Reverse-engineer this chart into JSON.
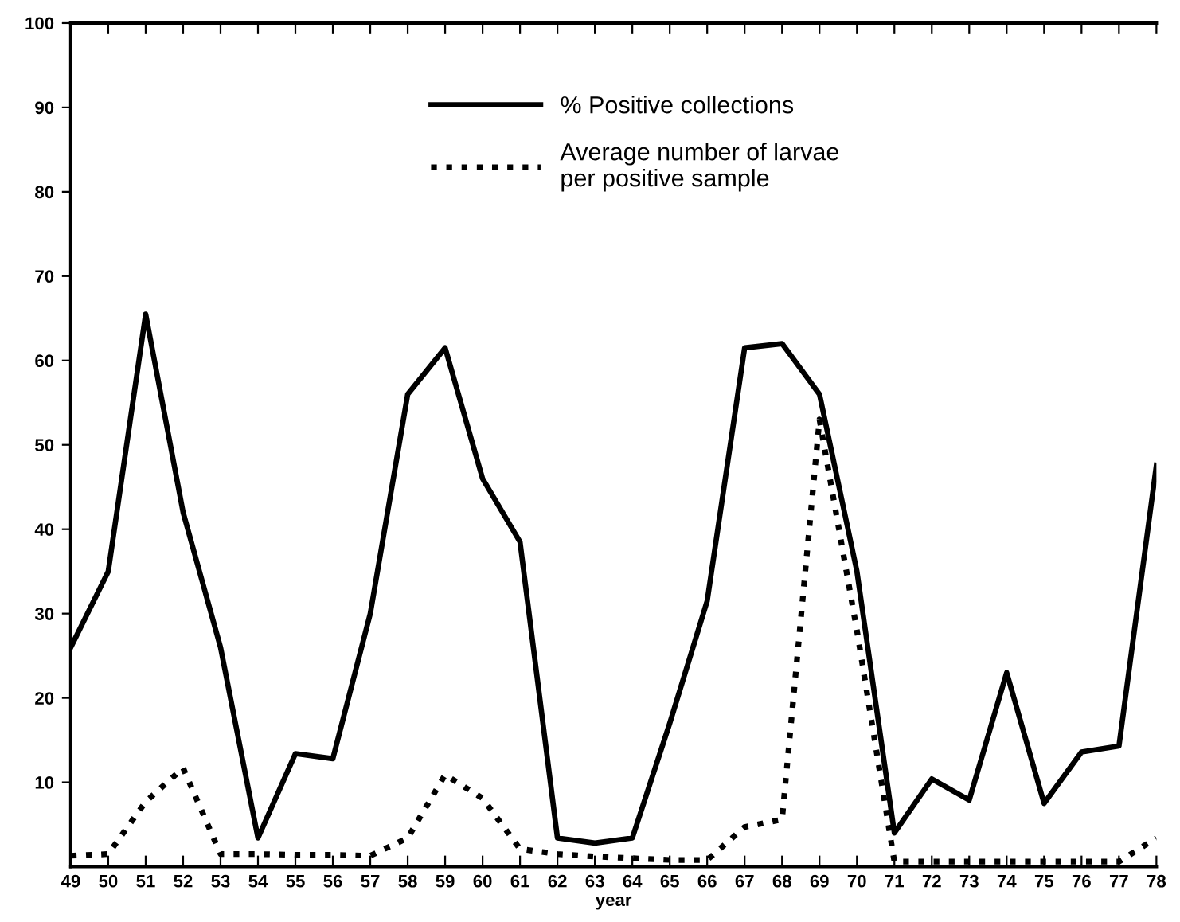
{
  "chart_data": {
    "type": "line",
    "xlabel": "year",
    "x": [
      49,
      50,
      51,
      52,
      53,
      54,
      55,
      56,
      57,
      58,
      59,
      60,
      61,
      62,
      63,
      64,
      65,
      66,
      67,
      68,
      69,
      70,
      71,
      72,
      73,
      74,
      75,
      76,
      77,
      78
    ],
    "series": [
      {
        "name": "% Positive collections",
        "color": "#000000",
        "line_style": "solid",
        "values": [
          26,
          35,
          65.5,
          42,
          26,
          3.4,
          13.4,
          12.8,
          30,
          56,
          61.5,
          46,
          38.5,
          3.4,
          2.8,
          3.4,
          17,
          31.5,
          61.5,
          62,
          56,
          35,
          4,
          10.4,
          7.9,
          23,
          7.5,
          13.6,
          14.3,
          47.6
        ]
      },
      {
        "name": "Average number of larvae\nper positive sample",
        "color": "#000000",
        "line_style": "dotted",
        "values": [
          1.3,
          1.5,
          7.7,
          11.7,
          1.5,
          1.5,
          1.4,
          1.4,
          1.3,
          3.4,
          10.9,
          8.1,
          2.1,
          1.5,
          1.2,
          1,
          0.8,
          0.8,
          4.7,
          5.6,
          53,
          28,
          0.6,
          0.6,
          0.6,
          0.6,
          0.6,
          0.6,
          0.6,
          3.4
        ]
      }
    ],
    "xlim": [
      49,
      78
    ],
    "xticks": [
      49,
      50,
      51,
      52,
      53,
      54,
      55,
      56,
      57,
      58,
      59,
      60,
      61,
      62,
      63,
      64,
      65,
      66,
      67,
      68,
      69,
      70,
      71,
      72,
      73,
      74,
      75,
      76,
      77,
      78
    ],
    "ylim": [
      0,
      100
    ],
    "yticks": [
      10,
      20,
      30,
      40,
      50,
      60,
      70,
      80,
      90,
      100
    ],
    "grid": false,
    "legend": "top",
    "marker": "none"
  }
}
